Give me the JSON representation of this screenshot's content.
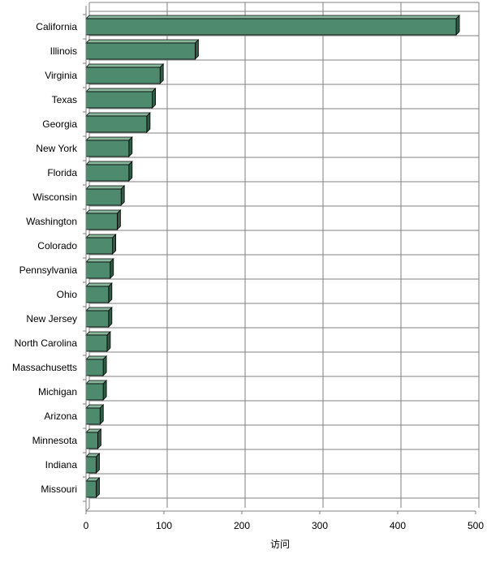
{
  "chart_data": {
    "type": "bar",
    "orientation": "horizontal",
    "style": "3d",
    "categories": [
      "California",
      "Illinois",
      "Virginia",
      "Texas",
      "Georgia",
      "New York",
      "Florida",
      "Wisconsin",
      "Washington",
      "Colorado",
      "Pennsylvania",
      "Ohio",
      "New Jersey",
      "North Carolina",
      "Massachusetts",
      "Michigan",
      "Arizona",
      "Minnesota",
      "Indiana",
      "Missouri"
    ],
    "values": [
      475,
      140,
      95,
      85,
      78,
      55,
      55,
      45,
      40,
      34,
      31,
      29,
      29,
      27,
      22,
      22,
      18,
      15,
      13,
      13
    ],
    "xlabel": "访问",
    "ylabel": "",
    "xlim": [
      0,
      500
    ],
    "xticks": [
      0,
      100,
      200,
      300,
      400,
      500
    ],
    "grid": true,
    "legend": "none",
    "colors": {
      "bar_front": "#4e8a6e",
      "bar_top": "#8ab89e",
      "bar_side": "#2f5a45",
      "bar_outline": "#000000",
      "grid": "#808080",
      "axis": "#808080"
    }
  }
}
